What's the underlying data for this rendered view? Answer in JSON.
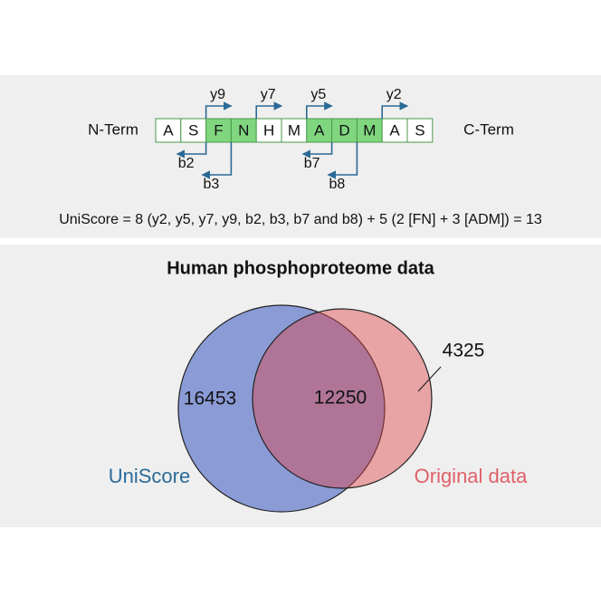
{
  "peptide": {
    "n_term": "N-Term",
    "c_term": "C-Term",
    "residues": [
      "A",
      "S",
      "F",
      "N",
      "H",
      "M",
      "A",
      "D",
      "M",
      "A",
      "S"
    ],
    "fragments": [
      "y9",
      "y7",
      "y5",
      "y2",
      "b2",
      "b3",
      "b7",
      "b8"
    ]
  },
  "formula": "UniScore = 8 (y2, y5, y7, y9, b2, b3, b7 and b8) + 5 (2 [FN] + 3 [ADM]) = 13",
  "venn": {
    "title": "Human phosphoproteome data",
    "sets": [
      {
        "label": "UniScore",
        "only": 16453
      },
      {
        "label": "Original data",
        "only": 4325
      }
    ],
    "overlap": 12250
  }
}
